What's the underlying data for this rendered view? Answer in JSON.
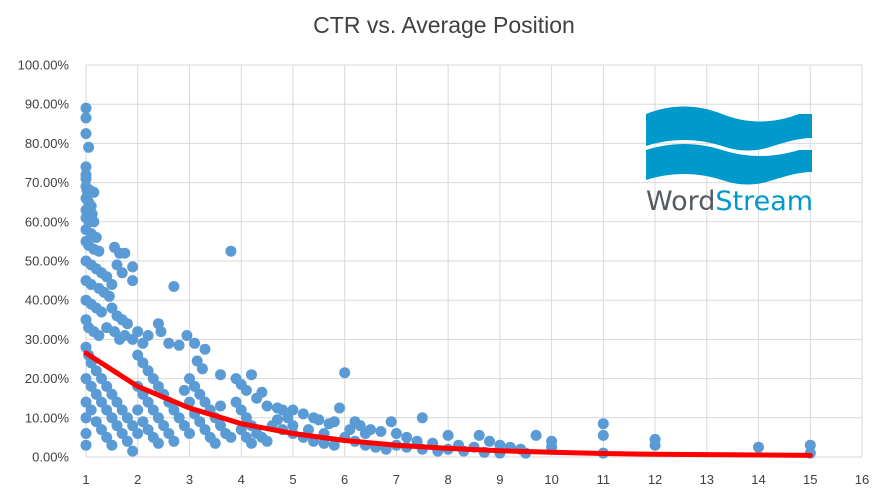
{
  "chart_data": {
    "type": "scatter",
    "title": "CTR vs. Average Position",
    "xlabel": "",
    "ylabel": "",
    "xlim": [
      1,
      16
    ],
    "ylim": [
      0,
      1
    ],
    "x_ticks": [
      "1",
      "2",
      "3",
      "4",
      "5",
      "6",
      "7",
      "8",
      "9",
      "10",
      "11",
      "12",
      "13",
      "14",
      "15",
      "16"
    ],
    "y_ticks": [
      "0.00%",
      "10.00%",
      "20.00%",
      "30.00%",
      "40.00%",
      "50.00%",
      "60.00%",
      "70.00%",
      "80.00%",
      "90.00%",
      "100.00%"
    ],
    "grid": "vertical and horizontal",
    "legend": "none",
    "series": [
      {
        "color": "#5b9bd5",
        "points": [
          [
            1.0,
            0.89
          ],
          [
            1.0,
            0.865
          ],
          [
            1.0,
            0.825
          ],
          [
            1.05,
            0.79
          ],
          [
            1.0,
            0.74
          ],
          [
            1.0,
            0.72
          ],
          [
            1.0,
            0.71
          ],
          [
            1.0,
            0.69
          ],
          [
            1.02,
            0.68
          ],
          [
            1.08,
            0.68
          ],
          [
            1.15,
            0.675
          ],
          [
            1.0,
            0.66
          ],
          [
            1.05,
            0.65
          ],
          [
            1.1,
            0.64
          ],
          [
            1.0,
            0.63
          ],
          [
            1.12,
            0.62
          ],
          [
            1.0,
            0.61
          ],
          [
            1.06,
            0.6
          ],
          [
            1.15,
            0.6
          ],
          [
            1.0,
            0.58
          ],
          [
            1.1,
            0.57
          ],
          [
            1.2,
            0.56
          ],
          [
            1.0,
            0.55
          ],
          [
            1.05,
            0.54
          ],
          [
            1.15,
            0.53
          ],
          [
            1.25,
            0.525
          ],
          [
            1.55,
            0.535
          ],
          [
            1.65,
            0.52
          ],
          [
            1.75,
            0.52
          ],
          [
            1.9,
            0.485
          ],
          [
            1.9,
            0.45
          ],
          [
            1.7,
            0.47
          ],
          [
            1.6,
            0.49
          ],
          [
            1.0,
            0.5
          ],
          [
            1.1,
            0.49
          ],
          [
            1.2,
            0.48
          ],
          [
            1.3,
            0.47
          ],
          [
            1.4,
            0.46
          ],
          [
            1.0,
            0.45
          ],
          [
            1.1,
            0.44
          ],
          [
            1.25,
            0.43
          ],
          [
            1.35,
            0.42
          ],
          [
            1.5,
            0.44
          ],
          [
            1.45,
            0.41
          ],
          [
            1.0,
            0.4
          ],
          [
            1.1,
            0.39
          ],
          [
            1.2,
            0.38
          ],
          [
            1.3,
            0.37
          ],
          [
            1.5,
            0.38
          ],
          [
            1.6,
            0.36
          ],
          [
            1.7,
            0.35
          ],
          [
            1.8,
            0.34
          ],
          [
            1.0,
            0.35
          ],
          [
            1.05,
            0.33
          ],
          [
            1.15,
            0.32
          ],
          [
            1.25,
            0.31
          ],
          [
            1.4,
            0.33
          ],
          [
            1.55,
            0.32
          ],
          [
            1.65,
            0.3
          ],
          [
            1.75,
            0.31
          ],
          [
            1.9,
            0.3
          ],
          [
            2.0,
            0.32
          ],
          [
            2.1,
            0.29
          ],
          [
            2.2,
            0.31
          ],
          [
            2.4,
            0.34
          ],
          [
            2.45,
            0.32
          ],
          [
            2.7,
            0.435
          ],
          [
            2.6,
            0.29
          ],
          [
            2.8,
            0.285
          ],
          [
            2.95,
            0.31
          ],
          [
            3.1,
            0.29
          ],
          [
            3.3,
            0.275
          ],
          [
            3.8,
            0.525
          ],
          [
            3.15,
            0.245
          ],
          [
            3.25,
            0.225
          ],
          [
            3.6,
            0.21
          ],
          [
            4.2,
            0.21
          ],
          [
            3.9,
            0.2
          ],
          [
            4.0,
            0.185
          ],
          [
            4.1,
            0.17
          ],
          [
            4.4,
            0.165
          ],
          [
            4.3,
            0.15
          ],
          [
            4.5,
            0.13
          ],
          [
            4.7,
            0.125
          ],
          [
            4.8,
            0.12
          ],
          [
            5.0,
            0.12
          ],
          [
            4.9,
            0.1
          ],
          [
            5.2,
            0.11
          ],
          [
            5.4,
            0.1
          ],
          [
            5.5,
            0.095
          ],
          [
            5.8,
            0.09
          ],
          [
            5.9,
            0.125
          ],
          [
            6.0,
            0.215
          ],
          [
            6.2,
            0.09
          ],
          [
            6.3,
            0.08
          ],
          [
            6.5,
            0.07
          ],
          [
            6.7,
            0.065
          ],
          [
            6.9,
            0.09
          ],
          [
            7.0,
            0.06
          ],
          [
            7.2,
            0.05
          ],
          [
            7.4,
            0.04
          ],
          [
            7.5,
            0.1
          ],
          [
            7.7,
            0.035
          ],
          [
            8.0,
            0.055
          ],
          [
            8.2,
            0.03
          ],
          [
            8.5,
            0.025
          ],
          [
            8.6,
            0.055
          ],
          [
            8.8,
            0.04
          ],
          [
            9.0,
            0.03
          ],
          [
            9.2,
            0.025
          ],
          [
            9.4,
            0.02
          ],
          [
            9.7,
            0.055
          ],
          [
            10.0,
            0.04
          ],
          [
            10.0,
            0.025
          ],
          [
            11.0,
            0.085
          ],
          [
            11.0,
            0.055
          ],
          [
            11.0,
            0.01
          ],
          [
            12.0,
            0.045
          ],
          [
            12.0,
            0.03
          ],
          [
            14.0,
            0.025
          ],
          [
            15.0,
            0.03
          ],
          [
            15.0,
            0.01
          ],
          [
            1.0,
            0.28
          ],
          [
            1.05,
            0.26
          ],
          [
            1.1,
            0.24
          ],
          [
            1.2,
            0.22
          ],
          [
            1.3,
            0.2
          ],
          [
            1.4,
            0.18
          ],
          [
            1.5,
            0.16
          ],
          [
            1.6,
            0.14
          ],
          [
            1.7,
            0.12
          ],
          [
            1.8,
            0.1
          ],
          [
            1.9,
            0.08
          ],
          [
            1.0,
            0.2
          ],
          [
            1.1,
            0.18
          ],
          [
            1.2,
            0.16
          ],
          [
            1.3,
            0.14
          ],
          [
            1.4,
            0.12
          ],
          [
            1.5,
            0.1
          ],
          [
            1.6,
            0.08
          ],
          [
            1.7,
            0.06
          ],
          [
            1.8,
            0.04
          ],
          [
            1.0,
            0.14
          ],
          [
            1.0,
            0.1
          ],
          [
            1.0,
            0.06
          ],
          [
            1.0,
            0.03
          ],
          [
            1.1,
            0.12
          ],
          [
            1.2,
            0.09
          ],
          [
            1.3,
            0.07
          ],
          [
            1.4,
            0.05
          ],
          [
            1.5,
            0.03
          ],
          [
            1.9,
            0.015
          ],
          [
            2.0,
            0.26
          ],
          [
            2.1,
            0.24
          ],
          [
            2.2,
            0.22
          ],
          [
            2.3,
            0.2
          ],
          [
            2.4,
            0.18
          ],
          [
            2.5,
            0.16
          ],
          [
            2.6,
            0.14
          ],
          [
            2.7,
            0.12
          ],
          [
            2.8,
            0.1
          ],
          [
            2.9,
            0.08
          ],
          [
            3.0,
            0.06
          ],
          [
            2.0,
            0.18
          ],
          [
            2.1,
            0.16
          ],
          [
            2.2,
            0.14
          ],
          [
            2.3,
            0.12
          ],
          [
            2.4,
            0.1
          ],
          [
            2.5,
            0.08
          ],
          [
            2.6,
            0.06
          ],
          [
            2.7,
            0.04
          ],
          [
            2.0,
            0.12
          ],
          [
            2.1,
            0.09
          ],
          [
            2.2,
            0.07
          ],
          [
            2.3,
            0.05
          ],
          [
            2.4,
            0.035
          ],
          [
            2.0,
            0.06
          ],
          [
            3.0,
            0.2
          ],
          [
            3.1,
            0.18
          ],
          [
            3.2,
            0.16
          ],
          [
            3.3,
            0.14
          ],
          [
            3.4,
            0.12
          ],
          [
            3.5,
            0.1
          ],
          [
            3.6,
            0.08
          ],
          [
            3.7,
            0.06
          ],
          [
            3.8,
            0.05
          ],
          [
            3.0,
            0.14
          ],
          [
            3.1,
            0.11
          ],
          [
            3.2,
            0.09
          ],
          [
            3.3,
            0.07
          ],
          [
            3.4,
            0.05
          ],
          [
            3.5,
            0.035
          ],
          [
            3.9,
            0.14
          ],
          [
            4.0,
            0.12
          ],
          [
            4.1,
            0.1
          ],
          [
            4.2,
            0.08
          ],
          [
            4.3,
            0.06
          ],
          [
            4.4,
            0.05
          ],
          [
            4.5,
            0.04
          ],
          [
            4.0,
            0.07
          ],
          [
            4.1,
            0.05
          ],
          [
            4.2,
            0.035
          ],
          [
            4.6,
            0.08
          ],
          [
            4.8,
            0.07
          ],
          [
            5.0,
            0.06
          ],
          [
            5.2,
            0.05
          ],
          [
            5.4,
            0.04
          ],
          [
            5.6,
            0.035
          ],
          [
            5.8,
            0.03
          ],
          [
            5.0,
            0.08
          ],
          [
            5.3,
            0.07
          ],
          [
            5.6,
            0.06
          ],
          [
            6.0,
            0.05
          ],
          [
            6.2,
            0.04
          ],
          [
            6.4,
            0.03
          ],
          [
            6.6,
            0.025
          ],
          [
            6.8,
            0.02
          ],
          [
            7.0,
            0.03
          ],
          [
            7.2,
            0.025
          ],
          [
            7.5,
            0.02
          ],
          [
            7.8,
            0.015
          ],
          [
            8.0,
            0.02
          ],
          [
            8.3,
            0.015
          ],
          [
            8.7,
            0.012
          ],
          [
            9.0,
            0.01
          ],
          [
            9.5,
            0.01
          ],
          [
            6.1,
            0.07
          ],
          [
            6.4,
            0.06
          ],
          [
            5.7,
            0.085
          ],
          [
            4.7,
            0.095
          ],
          [
            3.6,
            0.13
          ],
          [
            2.9,
            0.17
          ]
        ]
      }
    ],
    "trendline": {
      "color": "#ff0000",
      "points": [
        [
          1.0,
          0.265
        ],
        [
          2.0,
          0.18
        ],
        [
          3.0,
          0.125
        ],
        [
          4.0,
          0.085
        ],
        [
          5.0,
          0.06
        ],
        [
          6.0,
          0.042
        ],
        [
          7.0,
          0.03
        ],
        [
          8.0,
          0.022
        ],
        [
          9.0,
          0.016
        ],
        [
          10.0,
          0.012
        ],
        [
          11.0,
          0.009
        ],
        [
          12.0,
          0.007
        ],
        [
          13.0,
          0.006
        ],
        [
          14.0,
          0.005
        ],
        [
          15.0,
          0.004
        ]
      ]
    }
  },
  "logo": {
    "word_dark": "Word",
    "word_accent": "Stream",
    "color_dark": "#555a5f",
    "color_accent": "#0099cc"
  }
}
